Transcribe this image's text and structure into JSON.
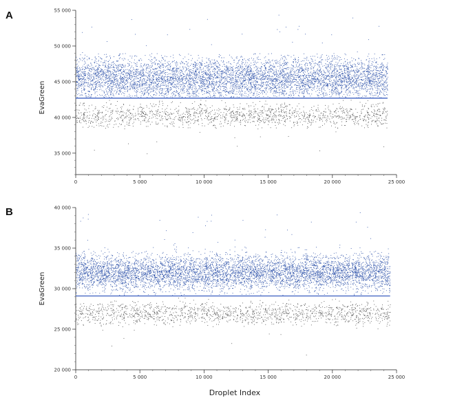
{
  "figure": {
    "x_axis_title": "Droplet Index"
  },
  "chart_data": [
    {
      "type": "scatter",
      "panel_label": "A",
      "ylabel": "EvaGreen",
      "xlabel": "",
      "xlim": [
        0,
        25000
      ],
      "ylim": [
        32000,
        55000
      ],
      "x_ticks": [
        0,
        5000,
        10000,
        15000,
        20000,
        25000
      ],
      "x_tick_labels": [
        "0",
        "5 000",
        "10 000",
        "15 000",
        "20 000",
        "25 000"
      ],
      "y_ticks": [
        35000,
        40000,
        45000,
        50000,
        55000
      ],
      "y_tick_labels": [
        "35 000",
        "40 000",
        "45 000",
        "50 000",
        "55 000"
      ],
      "threshold": 42700,
      "droplet_count": 24300,
      "series": [
        {
          "color": "#2a4fa8",
          "y_center": 45500,
          "y_spread": 1500,
          "y_min": 42800,
          "y_max": 49000
        },
        {
          "color": "#4a4a4a",
          "y_center": 40300,
          "y_spread": 900,
          "y_min": 38500,
          "y_max": 42600
        }
      ],
      "grid": false,
      "legend": "none",
      "colors": {
        "positive": "#2a4fa8",
        "negative": "#4a4a4a",
        "threshold": "#3b5fc0"
      }
    },
    {
      "type": "scatter",
      "panel_label": "B",
      "ylabel": "EvaGreen",
      "xlabel": "Droplet Index",
      "xlim": [
        0,
        25000
      ],
      "ylim": [
        20000,
        40000
      ],
      "x_ticks": [
        0,
        5000,
        10000,
        15000,
        20000,
        25000
      ],
      "x_tick_labels": [
        "0",
        "5 000",
        "10 000",
        "15 000",
        "20 000",
        "25 000"
      ],
      "y_ticks": [
        20000,
        25000,
        30000,
        35000,
        40000
      ],
      "y_tick_labels": [
        "20 000",
        "25 000",
        "30 000",
        "35 000",
        "40 000"
      ],
      "threshold": 29100,
      "droplet_count": 24500,
      "series": [
        {
          "color": "#2a4fa8",
          "y_center": 32000,
          "y_spread": 1100,
          "y_min": 29200,
          "y_max": 35200
        },
        {
          "color": "#4a4a4a",
          "y_center": 27000,
          "y_spread": 700,
          "y_min": 25200,
          "y_max": 29000
        }
      ],
      "grid": false,
      "legend": "none",
      "colors": {
        "positive": "#2a4fa8",
        "negative": "#4a4a4a",
        "threshold": "#3b5fc0"
      }
    }
  ]
}
